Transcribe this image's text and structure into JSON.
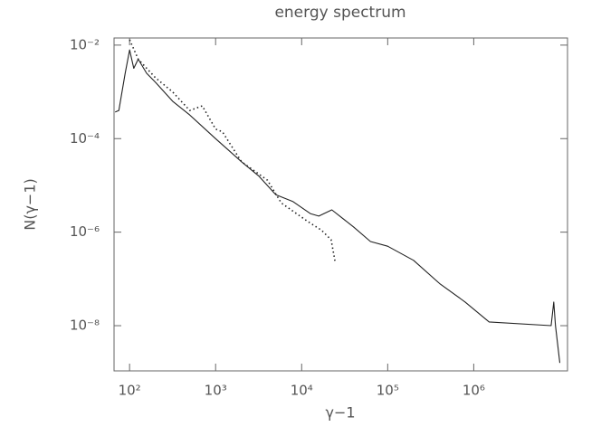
{
  "chart_data": {
    "type": "line",
    "title": "energy spectrum",
    "x_label": "γ−1",
    "y_label": "N(γ−1)",
    "log_x": true,
    "log_y": true,
    "xlim": [
      66,
      12300000
    ],
    "ylim": [
      1.08e-09,
      0.0142
    ],
    "xticks": [
      {
        "value": 100,
        "label": "10²"
      },
      {
        "value": 1000,
        "label": "10³"
      },
      {
        "value": 10000,
        "label": "10⁴"
      },
      {
        "value": 100000,
        "label": "10⁵"
      },
      {
        "value": 1000000,
        "label": "10⁶"
      }
    ],
    "yticks": [
      {
        "value": 1e-08,
        "label": "10⁻⁸"
      },
      {
        "value": 1e-06,
        "label": "10⁻⁶"
      },
      {
        "value": 0.0001,
        "label": "10⁻⁴"
      },
      {
        "value": 0.01,
        "label": "10⁻²"
      }
    ],
    "series": [
      {
        "color": "#222222",
        "style": "solid",
        "x": [
          68,
          75,
          89,
          100,
          112,
          126,
          158,
          200,
          316,
          500,
          1000,
          2000,
          3160,
          5000,
          7940,
          12600,
          15800,
          22400,
          40000,
          63000,
          100000,
          200000,
          400000,
          794000,
          1510000,
          7940000,
          8510000,
          8910000,
          10000000
        ],
        "values": [
          0.00037,
          0.0004,
          0.0025,
          0.0079,
          0.0032,
          0.005,
          0.0025,
          0.0016,
          0.00063,
          0.00032,
          0.0001,
          3.2e-05,
          1.6e-05,
          6.3e-06,
          4.5e-06,
          2.5e-06,
          2.2e-06,
          3e-06,
          1.3e-06,
          6.3e-07,
          5e-07,
          2.5e-07,
          8e-08,
          3.2e-08,
          1.2e-08,
          1e-08,
          3.2e-08,
          1e-08,
          1.6e-09
        ]
      },
      {
        "color": "#222222",
        "style": "dotted",
        "x": [
          100,
          126,
          200,
          316,
          500,
          700,
          1000,
          1200,
          2000,
          4000,
          5800,
          11700,
          17000,
          22000,
          24500
        ],
        "values": [
          0.013,
          0.005,
          0.002,
          0.001,
          0.0004,
          0.0005,
          0.00016,
          0.00014,
          3.2e-05,
          1.3e-05,
          4.2e-06,
          1.7e-06,
          1.1e-06,
          6.9e-07,
          2.3e-07
        ]
      }
    ]
  }
}
